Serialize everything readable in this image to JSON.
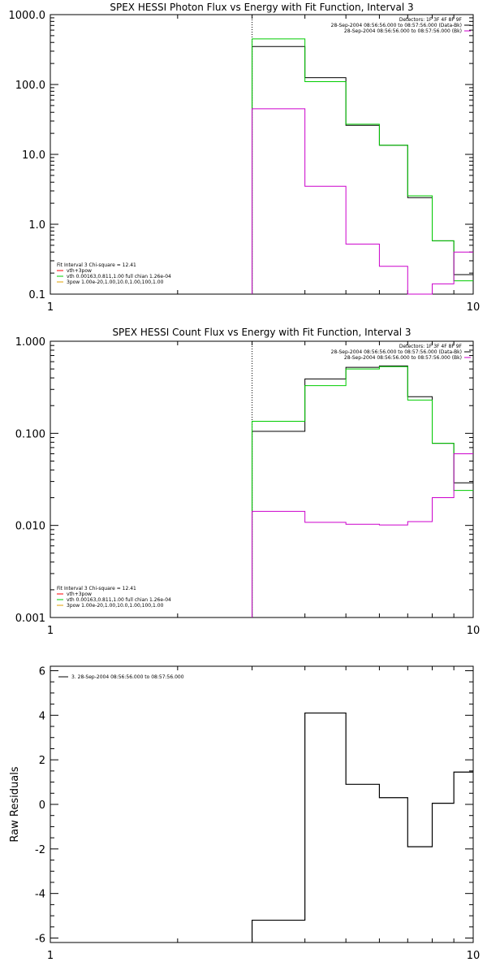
{
  "chart_data": [
    {
      "type": "line",
      "title": "SPEX HESSI Photon Flux vs Energy with Fit Function, Interval 3",
      "xscale": "log",
      "yscale": "log",
      "xlim": [
        1,
        10
      ],
      "ylim": [
        0.1,
        1000
      ],
      "x_ticks": [
        "1",
        "10"
      ],
      "y_ticks": [
        "0.1",
        "1.0",
        "10.0",
        "100.0",
        "1000.0"
      ],
      "y_tick_values": [
        0.1,
        1,
        10,
        100,
        1000
      ],
      "vline_x": 3.0,
      "legend_top": [
        "Detectors: 1F 3F 4F 8F 9F",
        "28-Sep-2004 08:56:56.000 to 08:57:56.000 (Data-Bk)",
        "28-Sep-2004 08:56:56.000 to 08:57:56.000 (Bk)"
      ],
      "legend_bottom": [
        "Fit Interval 3   Chi-square = 12.41",
        "vth+3pow",
        "vth 0.00163,0.811,1.00  full chian 1.26e-04",
        "3pow 1.00e-20,1.00,10.0,1.00,100,1.00"
      ],
      "edges": [
        3.0,
        4.0,
        5.0,
        6.0,
        7.0,
        8.0,
        9.0,
        10.0
      ],
      "series": [
        {
          "name": "28-Sep-2004 08:56:56.000 to 08:57:56.000 (Data-Bk)",
          "color": "#000000",
          "values": [
            350,
            125,
            26,
            13.5,
            2.4,
            0.58,
            0.19
          ]
        },
        {
          "color": "#00cc00",
          "values": [
            450,
            110,
            27,
            13.5,
            2.55,
            0.58,
            0.155
          ]
        },
        {
          "name": "28-Sep-2004 08:56:56.000 to 08:57:56.000 (Bk)",
          "color": "#cc00cc",
          "values": [
            45,
            3.5,
            0.52,
            0.25,
            0.1,
            0.14,
            0.4
          ]
        }
      ]
    },
    {
      "type": "line",
      "title": "SPEX HESSI Count Flux vs Energy with Fit Function, Interval 3",
      "xscale": "log",
      "yscale": "log",
      "xlim": [
        1,
        10
      ],
      "ylim": [
        0.001,
        1
      ],
      "x_ticks": [
        "1",
        "10"
      ],
      "y_ticks": [
        "0.001",
        "0.010",
        "0.100",
        "1.000"
      ],
      "y_tick_values": [
        0.001,
        0.01,
        0.1,
        1
      ],
      "vline_x": 3.0,
      "legend_top": [
        "Detectors: 1F 3F 4F 8F 9F",
        "28-Sep-2004 08:56:56.000 to 08:57:56.000 (Data-Bk)",
        "28-Sep-2004 08:56:56.000 to 08:57:56.000 (Bk)"
      ],
      "legend_bottom": [
        "Fit Interval 3   Chi-square = 12.41",
        "vth+3pow",
        "vth 0.00163,0.811,1.00  full chian 1.26e-04",
        "3pow 1.00e-20,1.00,10.0,1.00,100,1.00"
      ],
      "edges": [
        3.0,
        4.0,
        5.0,
        6.0,
        7.0,
        8.0,
        9.0,
        10.0
      ],
      "series": [
        {
          "name": "28-Sep-2004 08:56:56.000 to 08:57:56.000 (Data-Bk)",
          "color": "#000000",
          "values": [
            0.105,
            0.39,
            0.52,
            0.54,
            0.25,
            0.078,
            0.029
          ]
        },
        {
          "color": "#00cc00",
          "values": [
            0.135,
            0.33,
            0.5,
            0.53,
            0.23,
            0.078,
            0.024
          ]
        },
        {
          "name": "28-Sep-2004 08:56:56.000 to 08:57:56.000 (Bk)",
          "color": "#cc00cc",
          "values": [
            0.0142,
            0.0108,
            0.0103,
            0.0101,
            0.011,
            0.02,
            0.06
          ]
        }
      ]
    },
    {
      "type": "line",
      "title": "",
      "ylabel": "Raw Residuals",
      "xscale": "log",
      "yscale": "linear",
      "xlim": [
        1,
        10
      ],
      "ylim": [
        -6.2,
        6.2
      ],
      "x_ticks": [
        "1",
        "10"
      ],
      "y_ticks": [
        "-6",
        "-4",
        "-2",
        "0",
        "2",
        "4",
        "6"
      ],
      "y_tick_values": [
        -6,
        -4,
        -2,
        0,
        2,
        4,
        6
      ],
      "legend_top": [
        "3. 28-Sep-2004 08:56:56.000 to 08:57:56.000"
      ],
      "edges": [
        3.0,
        4.0,
        5.0,
        6.0,
        7.0,
        8.0,
        9.0,
        10.0
      ],
      "series": [
        {
          "name": "3. 28-Sep-2004 08:56:56.000 to 08:57:56.000",
          "color": "#000000",
          "values": [
            -5.2,
            4.1,
            0.9,
            0.3,
            -1.9,
            0.05,
            1.45
          ]
        }
      ]
    }
  ]
}
